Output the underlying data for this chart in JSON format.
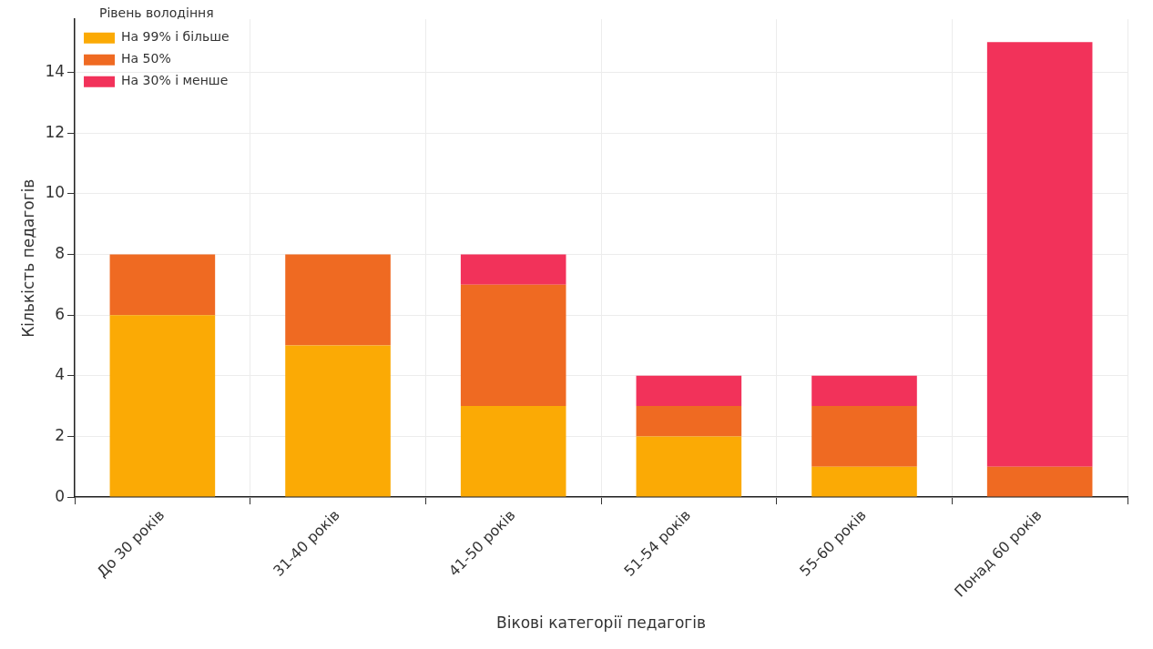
{
  "chart_data": {
    "type": "bar",
    "stacked": true,
    "xlabel": "Вікові категорії педагогів",
    "ylabel": "Кількість педагогів",
    "legend_title": "Рівень володіння",
    "legend": "top left",
    "grid": true,
    "categories": [
      "До 30 років",
      "31-40 років",
      "41-50 років",
      "51-54 років",
      "55-60 років",
      "Понад 60 років"
    ],
    "ylim": [
      0,
      15.75
    ],
    "yticks": [
      0,
      2,
      4,
      6,
      8,
      10,
      12,
      14
    ],
    "series": [
      {
        "name": "На 99% і більше",
        "color": "#fbaa05",
        "values": [
          6,
          5,
          3,
          2,
          1,
          0
        ]
      },
      {
        "name": "На 50%",
        "color": "#ef6a22",
        "values": [
          2,
          3,
          4,
          1,
          2,
          1
        ]
      },
      {
        "name": "На 30% і менше",
        "color": "#f2325a",
        "values": [
          0,
          0,
          1,
          1,
          1,
          14
        ]
      }
    ]
  }
}
